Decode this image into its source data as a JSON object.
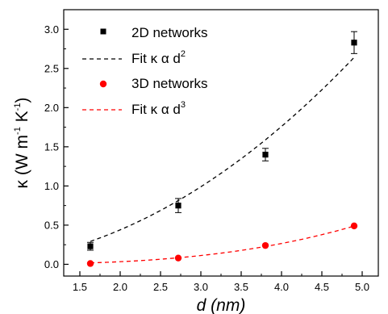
{
  "chart_data": {
    "type": "scatter",
    "xlabel": "d (nm)",
    "ylabel": "κ (W m-1 K-1)",
    "ylabel_parts": {
      "pre": "κ (W m",
      "e1": "-1",
      "mid": " K",
      "e2": "-1",
      "post": ")"
    },
    "xlim": [
      1.3,
      5.2
    ],
    "ylim": [
      -0.15,
      3.25
    ],
    "x_ticks": [
      1.5,
      2.0,
      2.5,
      3.0,
      3.5,
      4.0,
      4.5,
      5.0
    ],
    "x_tick_labels": [
      "1.5",
      "2.0",
      "2.5",
      "3.0",
      "3.5",
      "4.0",
      "4.5",
      "5.0"
    ],
    "y_ticks": [
      0.0,
      0.5,
      1.0,
      1.5,
      2.0,
      2.5,
      3.0
    ],
    "y_tick_labels": [
      "0.0",
      "0.5",
      "1.0",
      "1.5",
      "2.0",
      "2.5",
      "3.0"
    ],
    "grid": false,
    "legend_position": "top-left",
    "series": [
      {
        "name": "2D networks",
        "marker": "square",
        "color": "#000000",
        "x": [
          1.63,
          2.72,
          3.8,
          4.9
        ],
        "y": [
          0.23,
          0.75,
          1.4,
          2.83
        ],
        "yerr": [
          0.05,
          0.09,
          0.08,
          0.14
        ]
      },
      {
        "name": "3D networks",
        "marker": "circle",
        "color": "#ff0000",
        "x": [
          1.63,
          2.72,
          3.8,
          4.9
        ],
        "y": [
          0.01,
          0.08,
          0.24,
          0.49
        ],
        "yerr": [
          0,
          0,
          0,
          0
        ]
      }
    ],
    "fits": [
      {
        "name": "Fit κ α d2",
        "label_base": "Fit κ α d",
        "exponent": "2",
        "power": 2,
        "coef": 0.11,
        "color": "#000000",
        "dash": "dashed",
        "x_range": [
          1.63,
          4.9
        ]
      },
      {
        "name": "Fit κ α d3",
        "label_base": "Fit κ α d",
        "exponent": "3",
        "power": 3,
        "coef": 0.00415,
        "color": "#ff0000",
        "dash": "dashed",
        "x_range": [
          1.63,
          4.9
        ]
      }
    ]
  }
}
